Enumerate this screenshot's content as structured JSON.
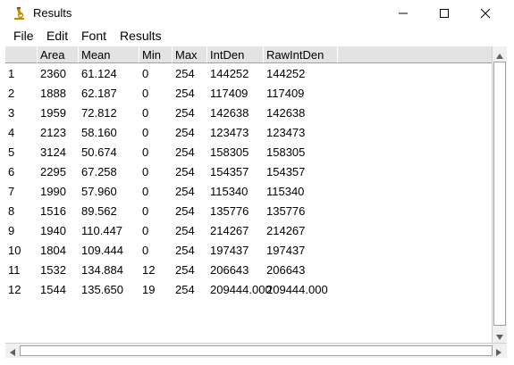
{
  "window": {
    "title": "Results"
  },
  "menu": {
    "file": "File",
    "edit": "Edit",
    "font": "Font",
    "results": "Results"
  },
  "table": {
    "columns": [
      "Area",
      "Mean",
      "Min",
      "Max",
      "IntDen",
      "RawIntDen"
    ],
    "rows": [
      [
        "1",
        "2360",
        "61.124",
        "0",
        "254",
        "144252",
        "144252"
      ],
      [
        "2",
        "1888",
        "62.187",
        "0",
        "254",
        "117409",
        "117409"
      ],
      [
        "3",
        "1959",
        "72.812",
        "0",
        "254",
        "142638",
        "142638"
      ],
      [
        "4",
        "2123",
        "58.160",
        "0",
        "254",
        "123473",
        "123473"
      ],
      [
        "5",
        "3124",
        "50.674",
        "0",
        "254",
        "158305",
        "158305"
      ],
      [
        "6",
        "2295",
        "67.258",
        "0",
        "254",
        "154357",
        "154357"
      ],
      [
        "7",
        "1990",
        "57.960",
        "0",
        "254",
        "115340",
        "115340"
      ],
      [
        "8",
        "1516",
        "89.562",
        "0",
        "254",
        "135776",
        "135776"
      ],
      [
        "9",
        "1940",
        "110.447",
        "0",
        "254",
        "214267",
        "214267"
      ],
      [
        "10",
        "1804",
        "109.444",
        "0",
        "254",
        "197437",
        "197437"
      ],
      [
        "11",
        "1532",
        "134.884",
        "12",
        "254",
        "206643",
        "206643"
      ],
      [
        "12",
        "1544",
        "135.650",
        "19",
        "254",
        "209444.000",
        "209444.000"
      ]
    ]
  },
  "icons": {
    "app": "microscope-icon",
    "minimize": "minimize-icon",
    "maximize": "maximize-icon",
    "close": "close-icon"
  }
}
